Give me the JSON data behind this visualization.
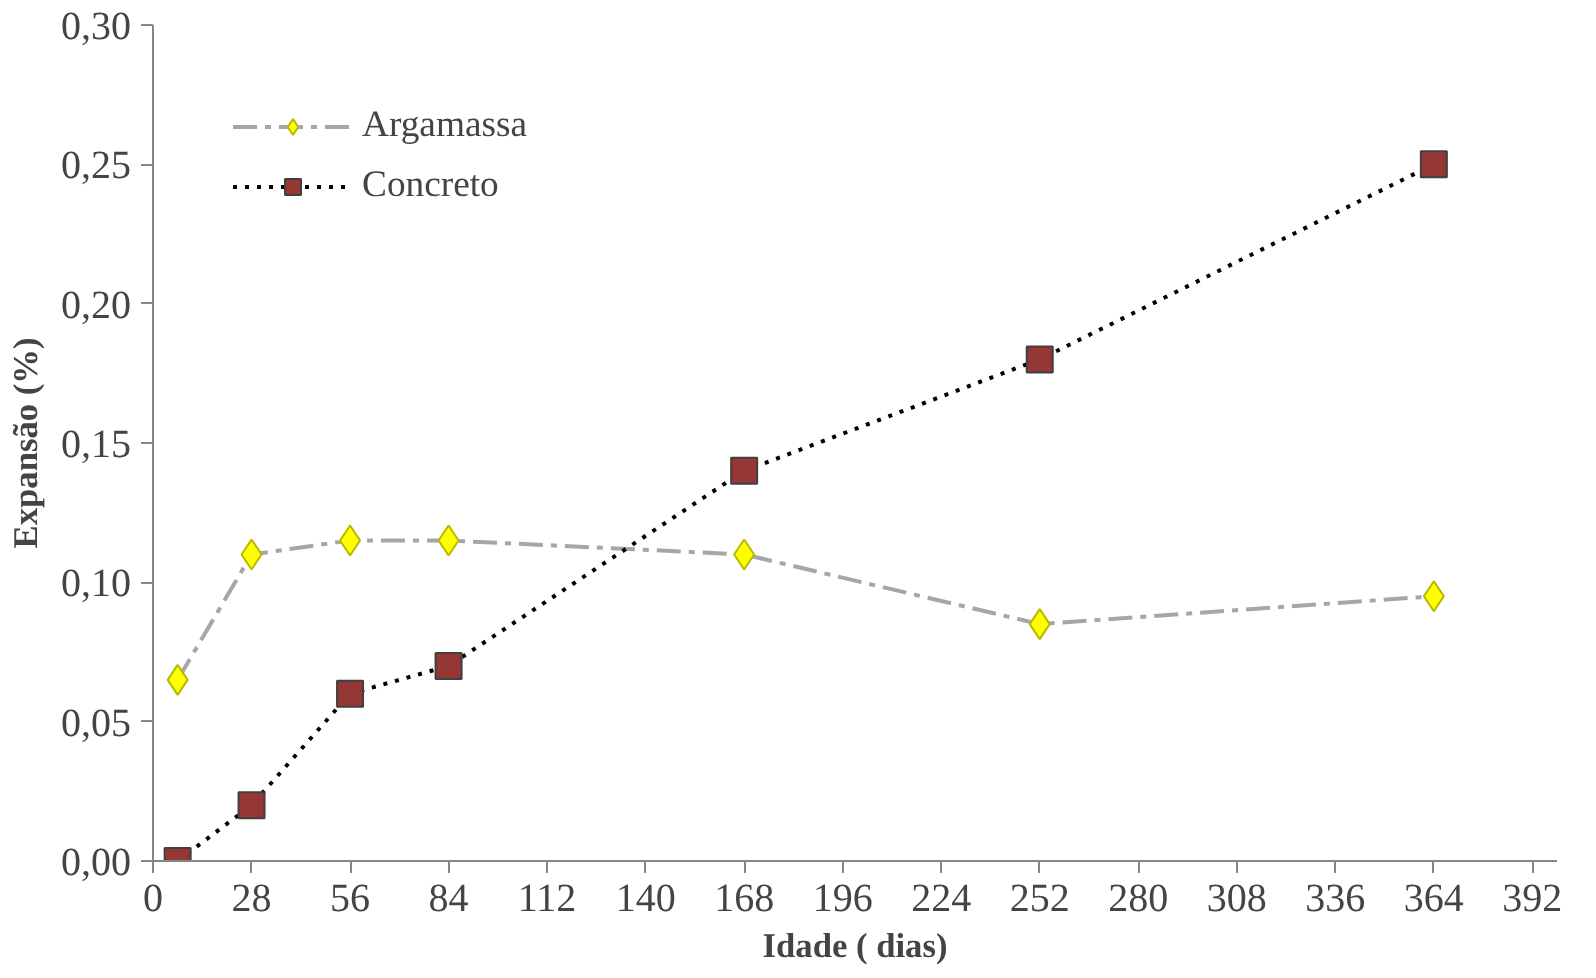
{
  "chart_data": {
    "type": "line",
    "xlabel": "Idade ( dias)",
    "ylabel": "Expansão (%)",
    "xlim": [
      0,
      399
    ],
    "ylim": [
      0,
      0.3
    ],
    "xticks": [
      0,
      28,
      56,
      84,
      112,
      140,
      168,
      196,
      224,
      252,
      280,
      308,
      336,
      364,
      392
    ],
    "yticks": [
      {
        "value": 0,
        "label": "0,00"
      },
      {
        "value": 0.05,
        "label": "0,05"
      },
      {
        "value": 0.1,
        "label": "0,10"
      },
      {
        "value": 0.15,
        "label": "0,15"
      },
      {
        "value": 0.2,
        "label": "0,20"
      },
      {
        "value": 0.25,
        "label": "0,25"
      },
      {
        "value": 0.3,
        "label": "0,30"
      }
    ],
    "x": [
      7,
      28,
      56,
      84,
      168,
      252,
      364
    ],
    "series": [
      {
        "name": "Argamassa",
        "color": "#ffff00",
        "marker": "diamond",
        "line_style": "dashed",
        "values": [
          0.065,
          0.11,
          0.115,
          0.115,
          0.11,
          0.085,
          0.095
        ]
      },
      {
        "name": "Concreto",
        "color": "#953735",
        "marker": "square",
        "line_style": "dotted",
        "values": [
          0,
          0.02,
          0.06,
          0.07,
          0.14,
          0.18,
          0.25
        ]
      }
    ],
    "grid": false,
    "legend": "top left"
  }
}
